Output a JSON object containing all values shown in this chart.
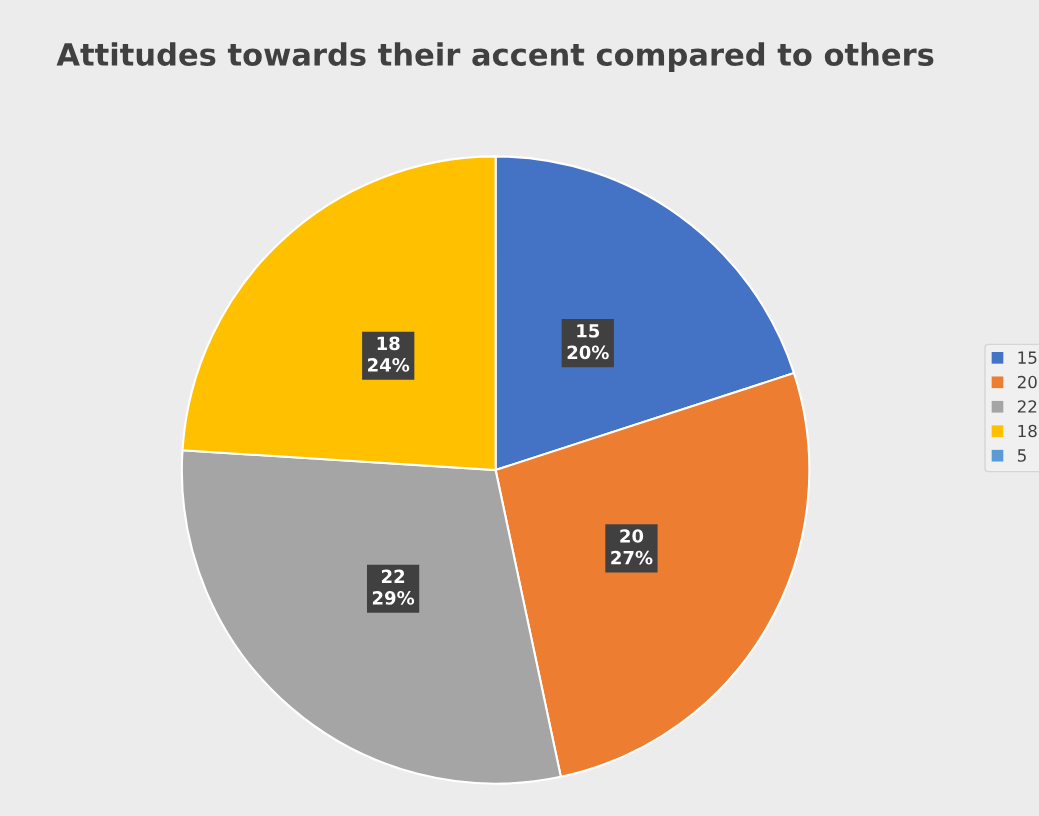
{
  "chart_data": {
    "type": "pie",
    "title": "Attitudes towards their accent compared to others",
    "categories": [
      "15",
      "20",
      "22",
      "18",
      "5"
    ],
    "values": [
      15,
      20,
      22,
      18,
      null
    ],
    "colors": [
      "#4472c4",
      "#ed7d31",
      "#a5a5a5",
      "#ffc000",
      "#5b9bd5"
    ],
    "value_labels": [
      "15\n20%",
      "20\n27%",
      "22\n29%",
      "18\n24%",
      null
    ],
    "legend": "right"
  }
}
